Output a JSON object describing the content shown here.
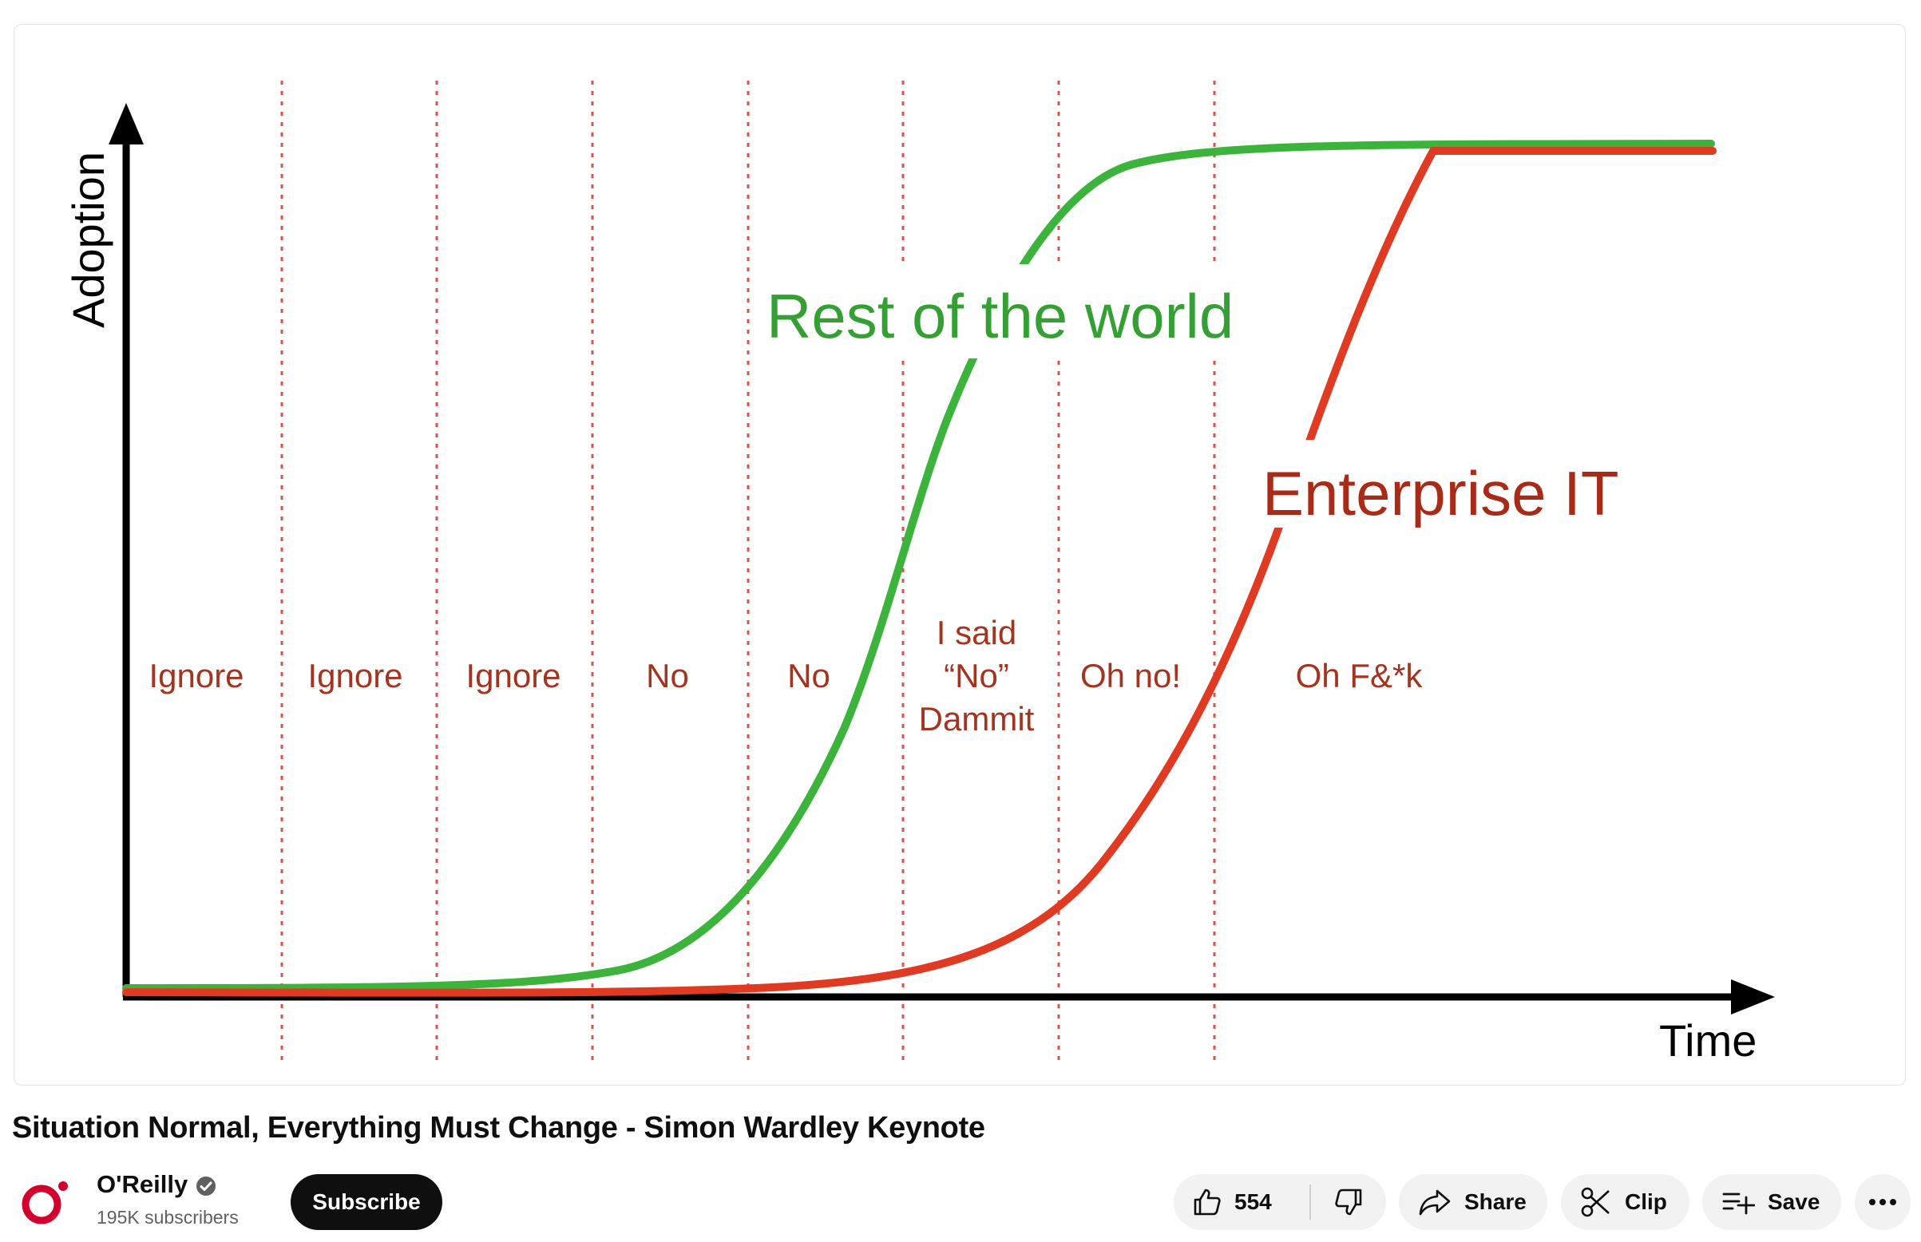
{
  "video": {
    "slide": {
      "y_axis_label": "Adoption",
      "x_axis_label": "Time",
      "curve_green_label": "Rest of the world",
      "curve_red_label": "Enterprise IT",
      "colors": {
        "green": "#3cb43c",
        "red": "#e03a22",
        "phase_text": "#a3341f",
        "green_text": "#34a033",
        "red_text": "#a82a17"
      },
      "phases": [
        {
          "lines": [
            "Ignore"
          ]
        },
        {
          "lines": [
            "Ignore"
          ]
        },
        {
          "lines": [
            "Ignore"
          ]
        },
        {
          "lines": [
            "No"
          ]
        },
        {
          "lines": [
            "No"
          ]
        },
        {
          "lines": [
            "I said",
            "“No”",
            "Dammit"
          ]
        },
        {
          "lines": [
            "Oh no!"
          ]
        },
        {
          "lines": [
            "Oh F&*k"
          ]
        }
      ]
    }
  },
  "title": "Situation Normal, Everything Must Change - Simon Wardley Keynote",
  "channel": {
    "name": "O'Reilly",
    "subscribers": "195K subscribers",
    "verified": true,
    "brand_color": "#d3002d"
  },
  "actions": {
    "subscribe_label": "Subscribe",
    "like_count": "554",
    "share_label": "Share",
    "clip_label": "Clip",
    "save_label": "Save"
  },
  "icons": {
    "like": "thumbs-up-icon",
    "dislike": "thumbs-down-icon",
    "share": "share-arrow-icon",
    "clip": "scissors-icon",
    "save": "playlist-add-icon",
    "more": "more-horizontal-icon",
    "verified": "verified-check-icon"
  }
}
